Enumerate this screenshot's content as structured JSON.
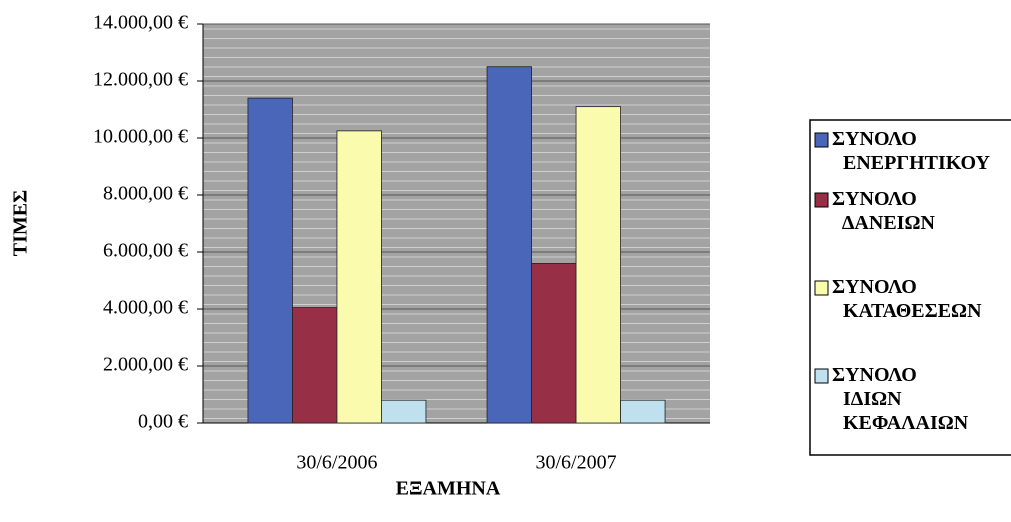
{
  "chart_data": {
    "type": "bar",
    "categories": [
      "30/6/2006",
      "30/6/2007"
    ],
    "series": [
      {
        "name": "ΣΥΝΟΛΟ ΕΝΕΡΓΗΤΙΚΟΥ",
        "color": "#4a66b8",
        "values": [
          11400,
          12500
        ]
      },
      {
        "name": "ΣΥΝΟΛΟ ΔΑΝΕΙΩΝ",
        "color": "#973046",
        "values": [
          4050,
          5600
        ]
      },
      {
        "name": "ΣΥΝΟΛΟ ΚΑΤΑΘΕΣΕΩΝ",
        "color": "#fbfbae",
        "values": [
          10250,
          11100
        ]
      },
      {
        "name": "ΣΥΝΟΛΟ ΙΔΙΩΝ ΚΕΦΑΛΑΙΩΝ",
        "color": "#bfe0ee",
        "values": [
          800,
          800
        ]
      }
    ],
    "xlabel": "ΕΞΑΜΗΝΑ",
    "ylabel": "ΤΙΜΕΣ",
    "ylim": [
      0,
      14000
    ],
    "yticks": [
      {
        "value": 0,
        "label": "0,00 €"
      },
      {
        "value": 2000,
        "label": "2.000,00 €"
      },
      {
        "value": 4000,
        "label": "4.000,00 €"
      },
      {
        "value": 6000,
        "label": "6.000,00 €"
      },
      {
        "value": 8000,
        "label": "8.000,00 €"
      },
      {
        "value": 10000,
        "label": "10.000,00 €"
      },
      {
        "value": 12000,
        "label": "12.000,00 €"
      },
      {
        "value": 14000,
        "label": "14.000,00 €"
      }
    ],
    "grid": true,
    "legend": "right"
  }
}
